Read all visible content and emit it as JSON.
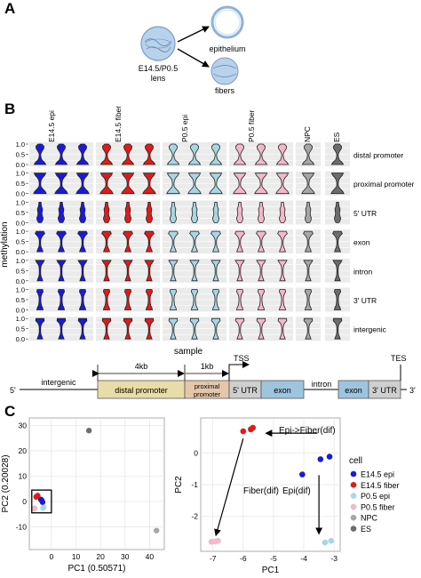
{
  "panels": {
    "a": "A",
    "b": "B",
    "c": "C"
  },
  "panel_a": {
    "lens_label_1": "E14.5/P0.5",
    "lens_label_2": "lens",
    "epithelium_label": "epithelium",
    "fibers_label": "fibers"
  },
  "panel_b": {
    "y_axis_label": "methylation",
    "x_axis_label": "sample",
    "y_ticks": [
      "1.0",
      "0.5",
      "0.0"
    ],
    "columns": [
      {
        "name": "E14.5 epi",
        "color": "#1a1adb",
        "replicates": 3
      },
      {
        "name": "E14.5 fiber",
        "color": "#e01b1b",
        "replicates": 3
      },
      {
        "name": "P0.5 epi",
        "color": "#a9d6e5",
        "replicates": 3
      },
      {
        "name": "P0.5 fiber",
        "color": "#f4b8c8",
        "replicates": 3
      },
      {
        "name": "NPC",
        "color": "#a6a6a6",
        "replicates": 1
      },
      {
        "name": "ES",
        "color": "#6d6d6d",
        "replicates": 1
      }
    ],
    "rows": [
      "distal promoter",
      "proximal promoter",
      "5' UTR",
      "exon",
      "intron",
      "3' UTR",
      "intergenic"
    ]
  },
  "gene_model": {
    "label_5prime": "5'",
    "label_3prime": "3'",
    "intergenic_label": "intergenic",
    "distal_promoter_label": "distal promoter",
    "proximal_promoter_label_1": "proximal",
    "proximal_promoter_label_2": "promoter",
    "utr5_label": "5' UTR",
    "exon_label": "exon",
    "intron_label": "intron",
    "utr3_label": "3' UTR",
    "tss_label": "TSS",
    "tes_label": "TES",
    "span_4kb": "4kb",
    "span_1kb": "1kb",
    "colors": {
      "distal": "#e9dcab",
      "proximal": "#e6c6a9",
      "utr": "#cfcfcf",
      "exon": "#9ec4de"
    }
  },
  "chart_data": [
    {
      "type": "scatter",
      "xlabel": "PC1 (0.50571)",
      "ylabel": "PC2 (0.20028)",
      "xlim": [
        -9,
        46
      ],
      "ylim": [
        -19,
        33
      ],
      "xticks": [
        -10,
        0,
        10,
        20,
        30,
        40
      ],
      "yticks": [
        -10,
        0,
        10,
        20,
        30
      ],
      "grid": true,
      "series": [
        {
          "name": "E14.5 epi",
          "color": "#1a1adb",
          "points": [
            [
              -4.3,
              0.8
            ],
            [
              -4.0,
              0.5
            ],
            [
              -3.6,
              -0.3
            ]
          ]
        },
        {
          "name": "E14.5 fiber",
          "color": "#e01b1b",
          "points": [
            [
              -5.8,
              2.0
            ],
            [
              -6.2,
              1.8
            ],
            [
              -5.6,
              2.3
            ]
          ]
        },
        {
          "name": "P0.5 epi",
          "color": "#a9d6e5",
          "points": [
            [
              -3.4,
              -2.6
            ],
            [
              -3.2,
              -2.4
            ]
          ]
        },
        {
          "name": "P0.5 fiber",
          "color": "#f4b8c8",
          "points": [
            [
              -7.0,
              -2.9
            ],
            [
              -6.8,
              -2.7
            ],
            [
              -7.1,
              -2.8
            ]
          ]
        },
        {
          "name": "NPC",
          "color": "#a6a6a6",
          "points": [
            [
              42.8,
              -11.5
            ]
          ]
        },
        {
          "name": "ES",
          "color": "#6d6d6d",
          "points": [
            [
              15.3,
              28.0
            ]
          ]
        }
      ]
    },
    {
      "type": "scatter",
      "xlabel": "PC1",
      "ylabel": "PC2",
      "xlim": [
        -7.4,
        -2.8
      ],
      "ylim": [
        -3.1,
        1.1
      ],
      "xticks": [
        -7,
        -6,
        -5,
        -4,
        -3
      ],
      "yticks": [
        -2,
        -1,
        0
      ],
      "grid": true,
      "legend_title": "cell",
      "legend_position": "right",
      "series": [
        {
          "name": "E14.5 epi",
          "color": "#1a1adb",
          "points": [
            [
              -3.45,
              -0.2
            ],
            [
              -3.15,
              -0.12
            ],
            [
              -4.05,
              -0.68
            ]
          ]
        },
        {
          "name": "E14.5 fiber",
          "color": "#e01b1b",
          "points": [
            [
              -6.0,
              0.68
            ],
            [
              -5.75,
              0.74
            ],
            [
              -5.68,
              0.79
            ]
          ]
        },
        {
          "name": "P0.5 epi",
          "color": "#a9d6e5",
          "points": [
            [
              -3.3,
              -2.82
            ],
            [
              -3.1,
              -2.77
            ]
          ]
        },
        {
          "name": "P0.5 fiber",
          "color": "#f4b8c8",
          "points": [
            [
              -7.05,
              -2.8
            ],
            [
              -6.92,
              -2.79
            ],
            [
              -6.83,
              -2.77
            ]
          ]
        },
        {
          "name": "NPC",
          "color": "#a6a6a6",
          "points": []
        },
        {
          "name": "ES",
          "color": "#6d6d6d",
          "points": []
        }
      ],
      "annotations": [
        "Epi->Fiber(dif)",
        "Fiber(dif)",
        "Epi(dif)"
      ]
    }
  ]
}
